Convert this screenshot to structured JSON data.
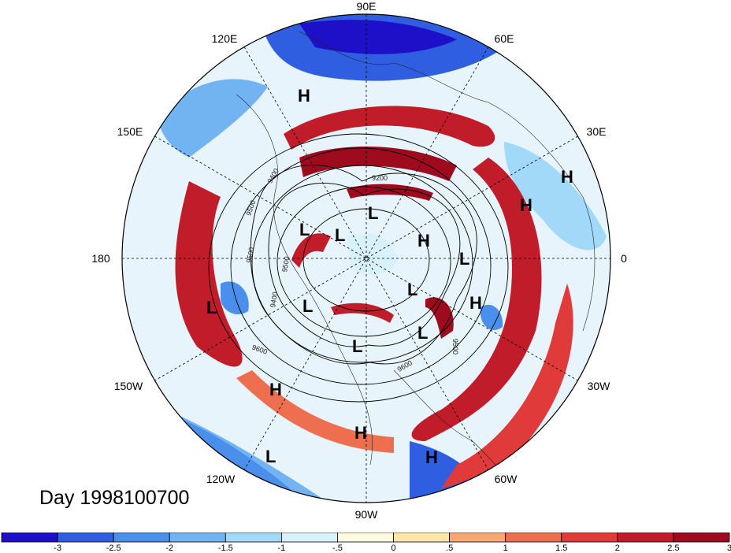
{
  "date_label": "Day 1998100700",
  "longitude_labels": [
    {
      "text": "90E"
    },
    {
      "text": "60E"
    },
    {
      "text": "30E"
    },
    {
      "text": "0"
    },
    {
      "text": "30W"
    },
    {
      "text": "60W"
    },
    {
      "text": "90W"
    },
    {
      "text": "120W"
    },
    {
      "text": "150W"
    },
    {
      "text": "180"
    },
    {
      "text": "150E"
    },
    {
      "text": "120E"
    }
  ],
  "pressure_systems": [
    "H",
    "H",
    "H",
    "H",
    "H",
    "H",
    "H",
    "H",
    "L",
    "L",
    "L",
    "L",
    "L",
    "L",
    "L",
    "L",
    "L",
    "L"
  ],
  "contour_labels": [
    "9200",
    "9400",
    "9500",
    "9500",
    "9500",
    "9400",
    "9600",
    "9600",
    "9500"
  ],
  "colorbar": {
    "colors": [
      "#1e10c8",
      "#2f5fe0",
      "#4a8fec",
      "#72b4f2",
      "#a2d8f8",
      "#d8f2fc",
      "#fffbe0",
      "#fde6a8",
      "#f6a772",
      "#ee6e50",
      "#e03a3a",
      "#c11c2a",
      "#9e0b1e"
    ],
    "ticks": [
      "-3",
      "-2.5",
      "-2",
      "-1.5",
      "-1",
      "-.5",
      "0",
      ".5",
      "1",
      "1.5",
      "2",
      "2.5",
      "3"
    ]
  }
}
